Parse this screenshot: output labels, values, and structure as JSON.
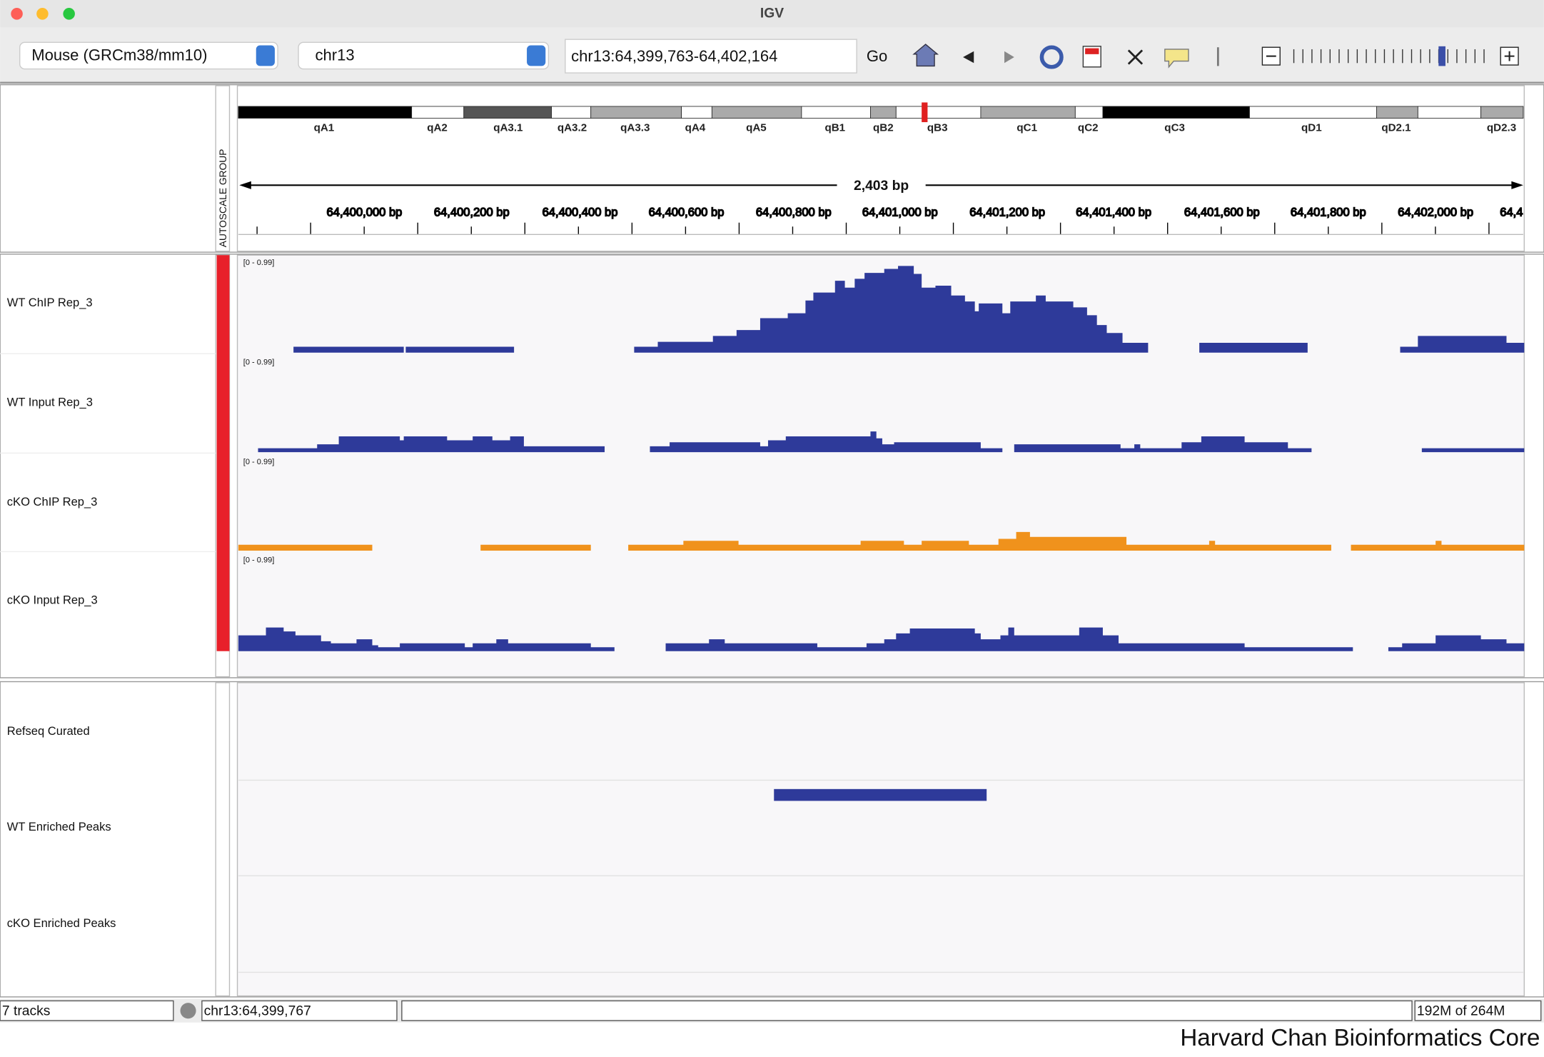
{
  "window": {
    "title": "IGV"
  },
  "toolbar": {
    "genome": "Mouse (GRCm38/mm10)",
    "chromosome": "chr13",
    "locus": "chr13:64,399,763-64,402,164",
    "go": "Go"
  },
  "ideogram": {
    "bands": [
      "qA1",
      "qA2",
      "qA3.1",
      "qA3.2",
      "qA3.3",
      "qA4",
      "qA5",
      "qB1",
      "qB2",
      "qB3",
      "qC1",
      "qC2",
      "qC3",
      "qD1",
      "qD2.1",
      "qD2.3"
    ]
  },
  "ruler": {
    "span": "2,403 bp",
    "ticks": [
      "64,400,000 bp",
      "64,400,200 bp",
      "64,400,400 bp",
      "64,400,600 bp",
      "64,400,800 bp",
      "64,401,000 bp",
      "64,401,200 bp",
      "64,401,400 bp",
      "64,401,600 bp",
      "64,401,800 bp",
      "64,402,000 bp",
      "64,4"
    ]
  },
  "data_panel": {
    "autoscale_label": "AUTOSCALE GROUP",
    "tracks": [
      {
        "name": "WT ChIP Rep_3",
        "range": "[0 - 0.99]"
      },
      {
        "name": "WT Input Rep_3",
        "range": "[0 - 0.99]"
      },
      {
        "name": "cKO ChIP Rep_3",
        "range": "[0 - 0.99]"
      },
      {
        "name": "cKO Input Rep_3",
        "range": "[0 - 0.99]"
      }
    ]
  },
  "feature_panel": {
    "tracks": [
      "Refseq Curated",
      "WT Enriched Peaks",
      "cKO Enriched Peaks"
    ]
  },
  "status_bar": {
    "tracks": "7 tracks",
    "position": "chr13:64,399,767",
    "memory": "192M of 264M"
  },
  "footer": "Harvard Chan Bioinformatics Core"
}
